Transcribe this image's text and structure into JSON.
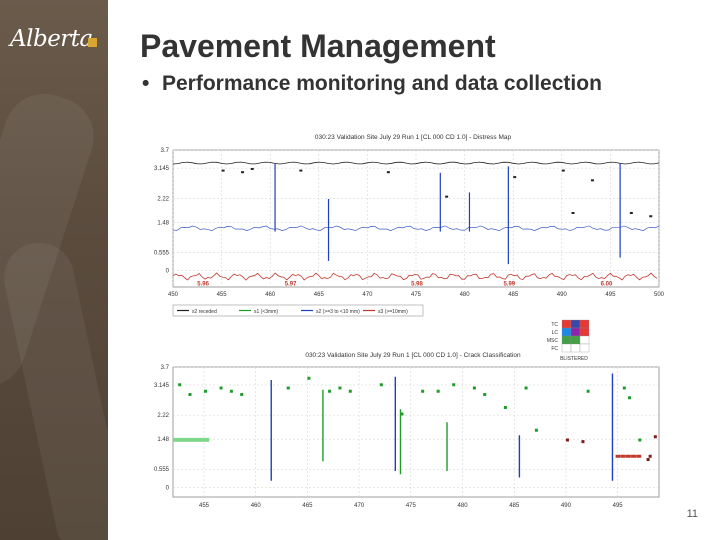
{
  "slide": {
    "title": "Pavement Management",
    "bullet": "Performance monitoring and data collection",
    "page_number": "11",
    "logo_text": "Alberta"
  },
  "colors": {
    "sidebar": "#5d4e40",
    "logo_accent": "#d8a531",
    "title": "#333333",
    "blue_trace": "#1f3fbf",
    "red_trace": "#c0392b",
    "green_trace": "#1f9d2a"
  },
  "chart_data": [
    {
      "type": "line",
      "title": "030:23 Validation Site July 29 Run 1 [CL 000 CD 1.0] - Distress Map",
      "x_ticks": [
        "450",
        "455",
        "460",
        "465",
        "470",
        "475",
        "480",
        "485",
        "490",
        "495",
        "500"
      ],
      "xlim": [
        450,
        500
      ],
      "y_ticks": [
        "3.7",
        "3.145",
        "2.22",
        "1.48",
        "0.555",
        "0"
      ],
      "ylim": [
        -0.5,
        3.7
      ],
      "grid": true,
      "annotations": [
        "5.96",
        "5.97",
        "5.98",
        "5.99",
        "6.00"
      ],
      "legend": [
        "s2 receded",
        "s1 (<3mm)",
        "s2 (>=3 to <10 mm)",
        "s3 (>=10mm)"
      ],
      "legend_colors": [
        "#222222",
        "#1f9d2a",
        "#1f3fbf",
        "#c0392b"
      ],
      "side_legend": [
        "TC",
        "LC",
        "MSC",
        "FC",
        "BLISTERED"
      ]
    },
    {
      "type": "scatter",
      "title": "030:23 Validation Site July 29 Run 1 [CL 000 CD 1.0] - Crack Classification",
      "x_ticks": [
        "455",
        "460",
        "465",
        "470",
        "475",
        "480",
        "485",
        "490",
        "495"
      ],
      "y_ticks": [
        "3.7",
        "3.145",
        "2.22",
        "1.48",
        "0.555",
        "0"
      ],
      "ylim": [
        -0.3,
        3.7
      ],
      "grid": true
    }
  ]
}
